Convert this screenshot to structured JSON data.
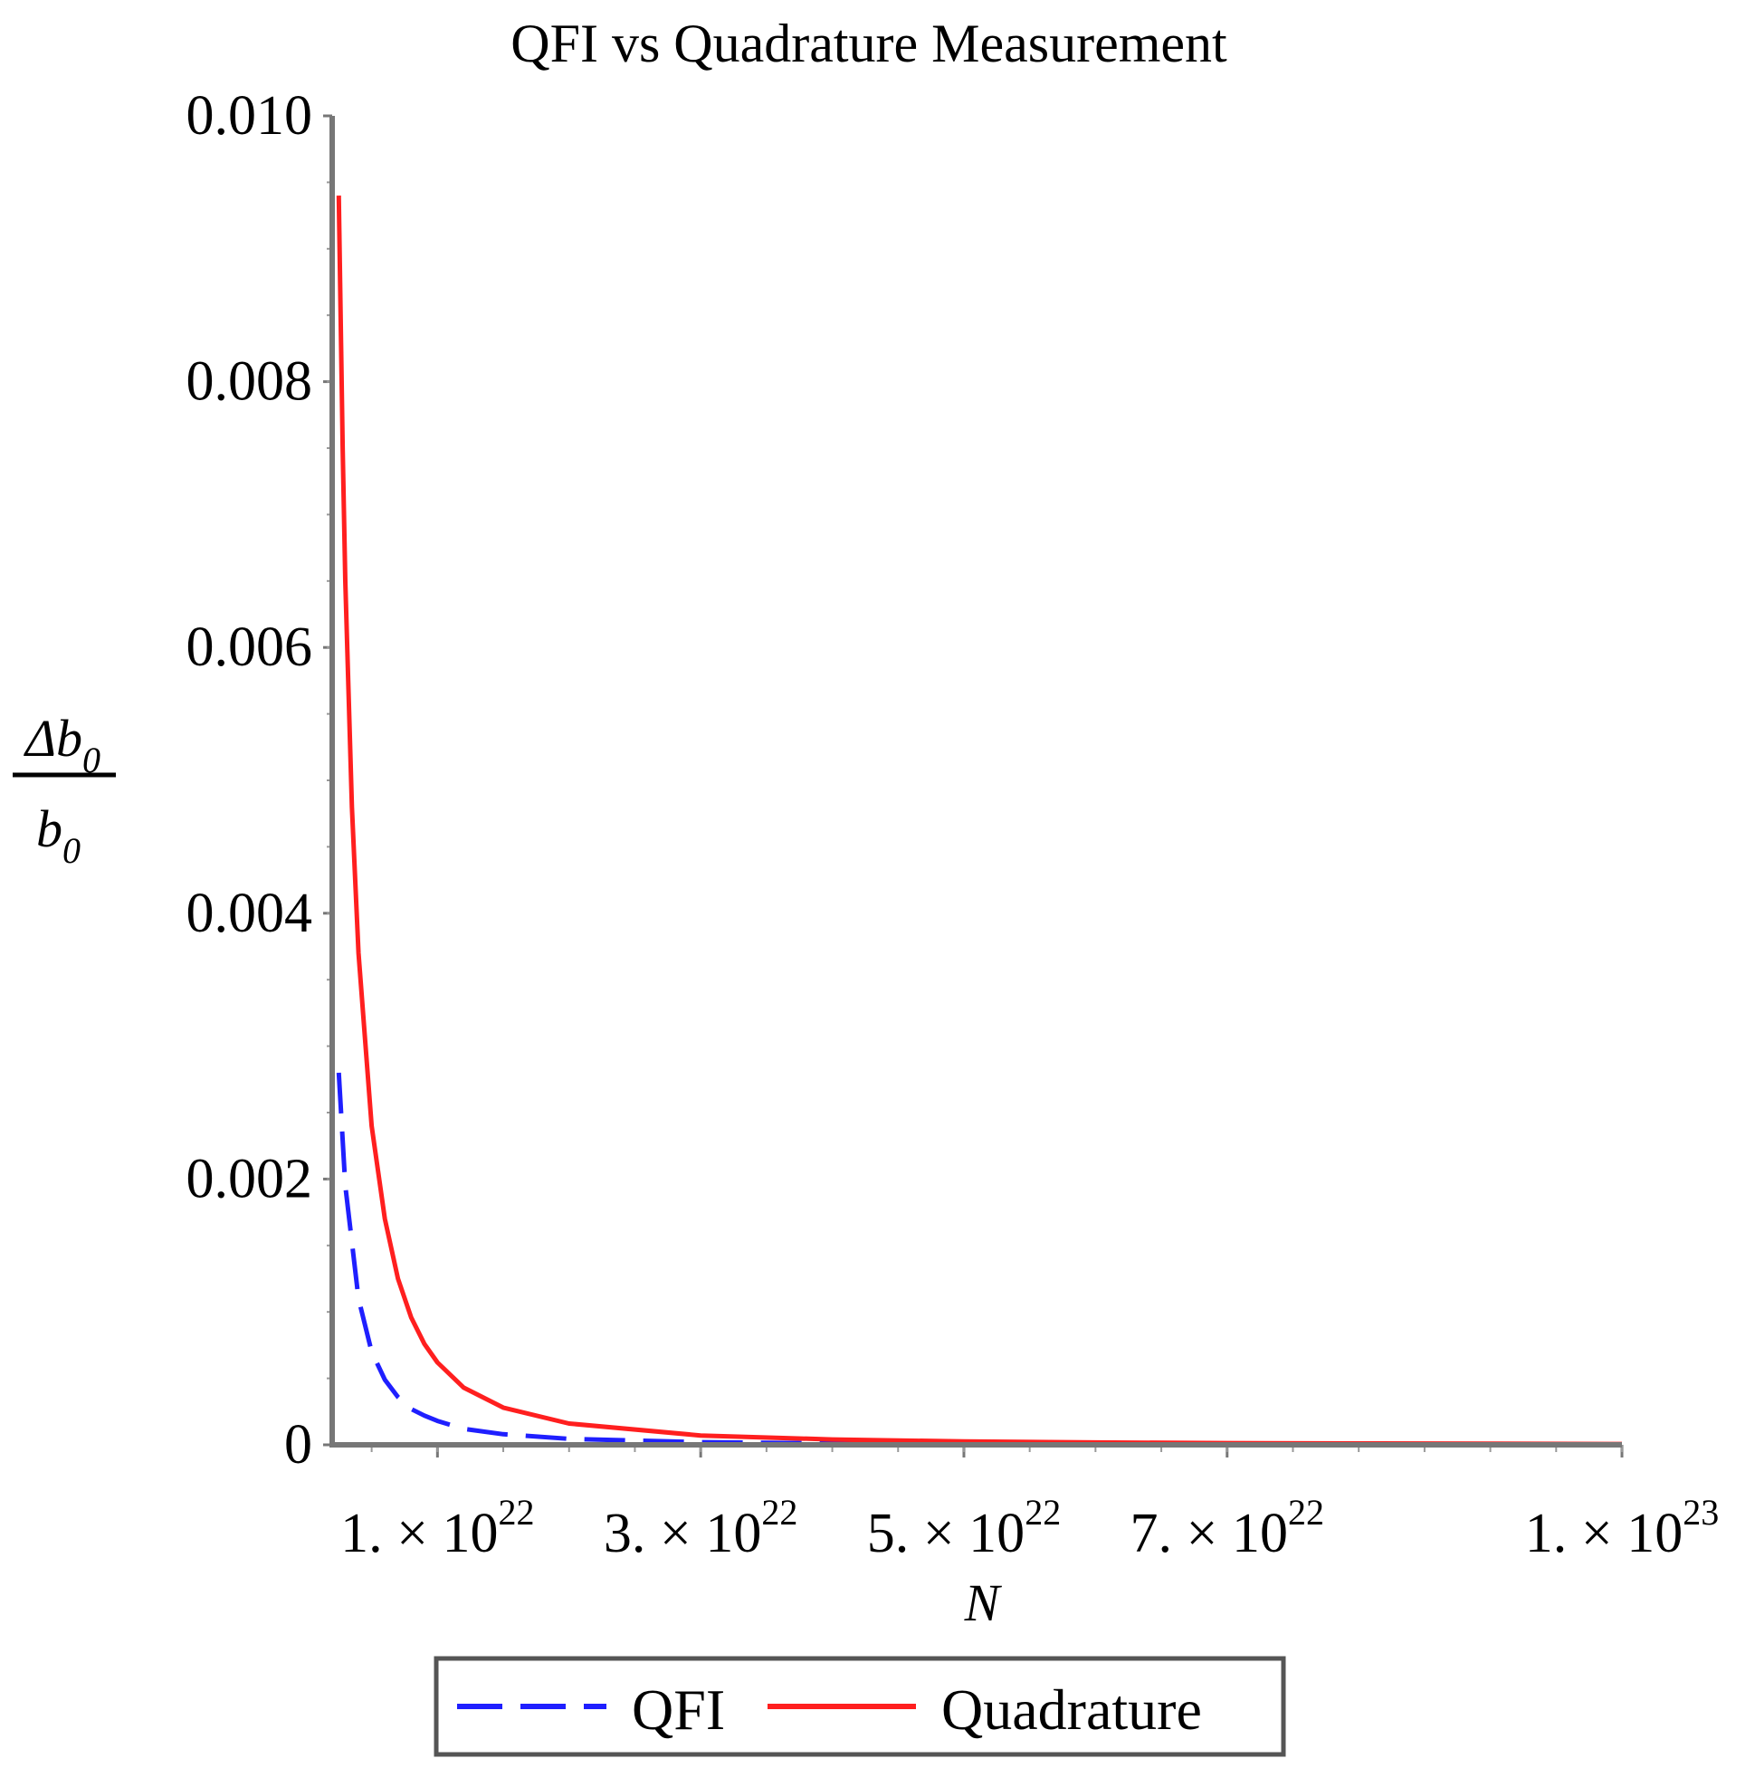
{
  "chart_data": {
    "type": "line",
    "title": "QFI vs Quadrature Measurement",
    "xlabel": "N",
    "ylabel": {
      "numerator": "Δb",
      "numerator_sub": "0",
      "denominator": "b",
      "denominator_sub": "0"
    },
    "xlim": [
      2e+21,
      1e+23
    ],
    "ylim": [
      0,
      0.01
    ],
    "grid": false,
    "legend_placement": "bottom",
    "x_ticks": [
      {
        "value": 1e+22,
        "mantissa": "1. × 10",
        "exponent": "22"
      },
      {
        "value": 3e+22,
        "mantissa": "3. × 10",
        "exponent": "22"
      },
      {
        "value": 5e+22,
        "mantissa": "5. × 10",
        "exponent": "22"
      },
      {
        "value": 7e+22,
        "mantissa": "7. × 10",
        "exponent": "22"
      },
      {
        "value": 1e+23,
        "mantissa": "1. × 10",
        "exponent": "23"
      }
    ],
    "y_ticks": [
      {
        "value": 0,
        "label": "0"
      },
      {
        "value": 0.002,
        "label": "0.002"
      },
      {
        "value": 0.004,
        "label": "0.004"
      },
      {
        "value": 0.006,
        "label": "0.006"
      },
      {
        "value": 0.008,
        "label": "0.008"
      },
      {
        "value": 0.01,
        "label": "0.010"
      }
    ],
    "series": [
      {
        "name": "QFI",
        "color": "#1f1fff",
        "style": "dashed",
        "x": [
          2.5e+21,
          3e+21,
          4e+21,
          5e+21,
          6e+21,
          7e+21,
          8e+21,
          9e+21,
          1e+22,
          1.2e+22,
          1.5e+22,
          2e+22,
          3e+22,
          4e+22,
          5e+22,
          6e+22,
          7e+22,
          8e+22,
          9e+22,
          1e+23
        ],
        "values": [
          0.0028,
          0.00195,
          0.0011,
          0.0007,
          0.00049,
          0.00036,
          0.00027,
          0.00022,
          0.00018,
          0.00012,
          8e-05,
          4.5e-05,
          2e-05,
          1.1e-05,
          7e-06,
          5e-06,
          4e-06,
          3e-06,
          2.2e-06,
          1.8e-06
        ]
      },
      {
        "name": "Quadrature",
        "color": "#ff1f1f",
        "style": "solid",
        "x": [
          2.5e+21,
          2.8e+21,
          3e+21,
          3.5e+21,
          4e+21,
          5e+21,
          6e+21,
          7e+21,
          8e+21,
          9e+21,
          1e+22,
          1.2e+22,
          1.5e+22,
          2e+22,
          3e+22,
          4e+22,
          5e+22,
          6e+22,
          7e+22,
          8e+22,
          9e+22,
          1e+23
        ],
        "values": [
          0.0094,
          0.0075,
          0.0065,
          0.0048,
          0.0037,
          0.0024,
          0.0017,
          0.00125,
          0.00096,
          0.00076,
          0.00062,
          0.00043,
          0.00028,
          0.00016,
          7e-05,
          4e-05,
          2.5e-05,
          1.8e-05,
          1.3e-05,
          1e-05,
          8e-06,
          6e-06
        ]
      }
    ]
  }
}
